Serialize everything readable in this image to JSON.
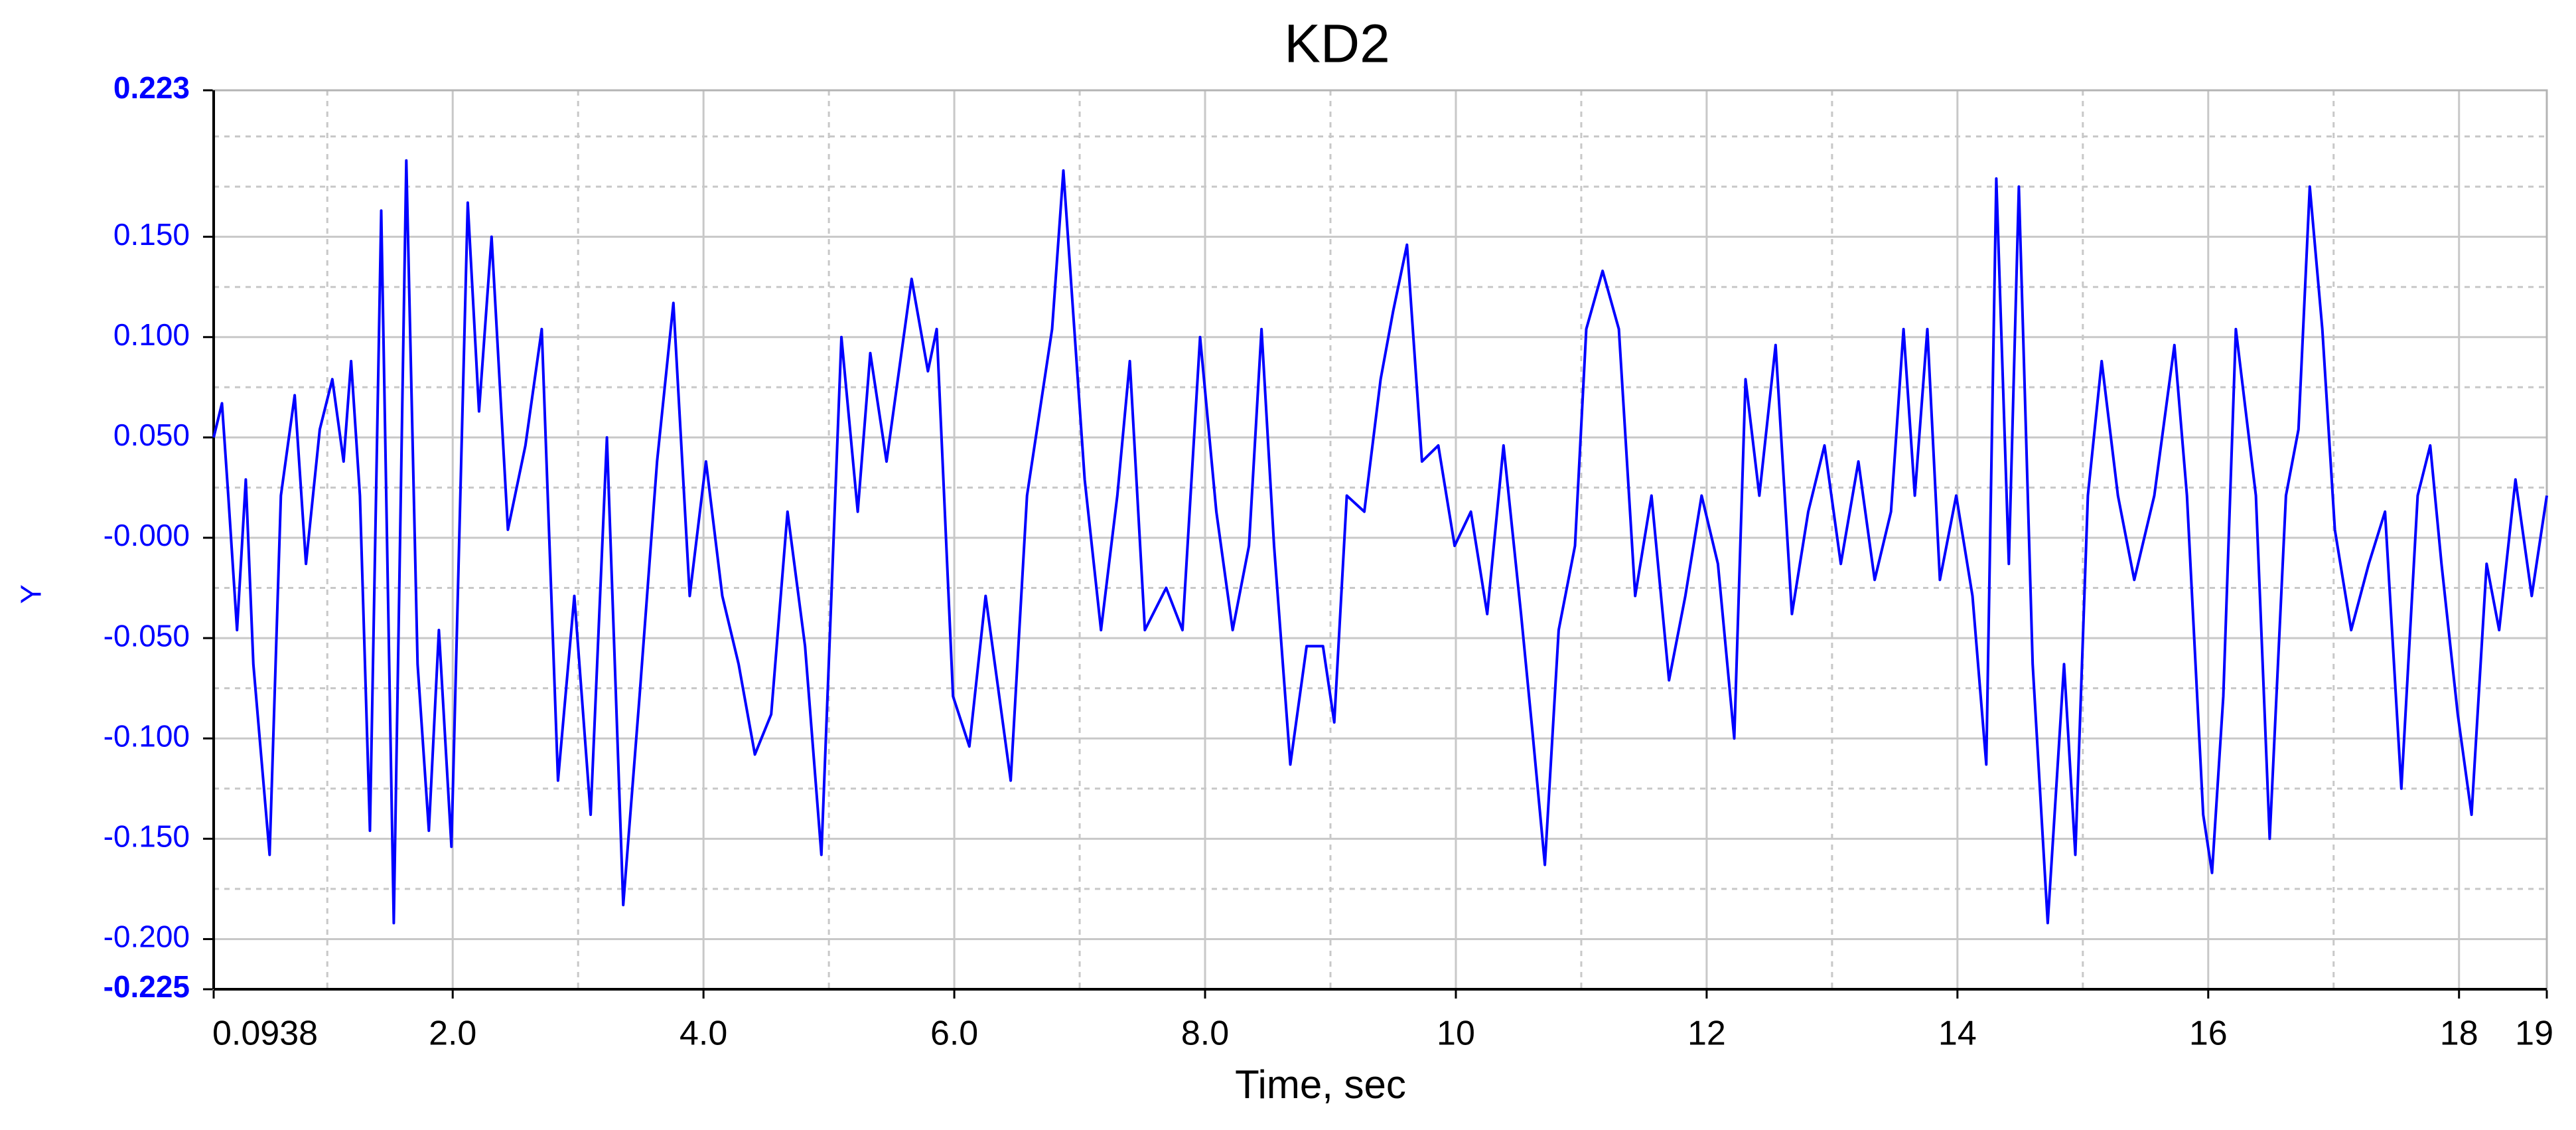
{
  "chart_data": {
    "type": "line",
    "title": "KD2",
    "x_label": "Time, sec",
    "y_label": "Y",
    "xlim": [
      0.0938,
      18.7
    ],
    "xticks": [
      0.0938,
      {
        "value": 2,
        "label": "2.0"
      },
      {
        "value": 4,
        "label": "4.0"
      },
      {
        "value": 6,
        "label": "6.0"
      },
      {
        "value": 8,
        "label": "8.0"
      },
      10,
      12,
      14,
      16,
      18,
      {
        "value": 18.7,
        "label": "19"
      }
    ],
    "minor_xticks": [
      1,
      3,
      5,
      7,
      9,
      11,
      13,
      15,
      17
    ],
    "ylim": [
      -0.225,
      0.223
    ],
    "yticks": [
      {
        "value": -0.225,
        "label": "-0.225"
      },
      {
        "value": -0.2,
        "label": "-0.200"
      },
      {
        "value": -0.15,
        "label": "-0.150"
      },
      {
        "value": -0.1,
        "label": "-0.100"
      },
      {
        "value": -0.05,
        "label": "-0.050"
      },
      {
        "value": 0,
        "label": "-0.000"
      },
      {
        "value": 0.05,
        "label": "0.050"
      },
      {
        "value": 0.1,
        "label": "0.100"
      },
      {
        "value": 0.15,
        "label": "0.150"
      },
      0.223
    ],
    "minor_yticks": [
      -0.175,
      -0.125,
      -0.075,
      -0.025,
      0.025,
      0.075,
      0.125,
      0.175,
      0.2
    ],
    "grid": true,
    "series": [
      {
        "name": "KD2",
        "color": "#0000ff",
        "x": [
          0.0938,
          0.16,
          0.21,
          0.28,
          0.35,
          0.41,
          0.54,
          0.63,
          0.74,
          0.83,
          0.94,
          1.04,
          1.13,
          1.19,
          1.26,
          1.34,
          1.43,
          1.53,
          1.63,
          1.72,
          1.81,
          1.89,
          1.99,
          2.12,
          2.21,
          2.31,
          2.44,
          2.58,
          2.71,
          2.84,
          2.97,
          3.1,
          3.23,
          3.36,
          3.49,
          3.63,
          3.76,
          3.89,
          4.02,
          4.15,
          4.28,
          4.41,
          4.54,
          4.67,
          4.81,
          4.94,
          5.1,
          5.23,
          5.33,
          5.46,
          5.66,
          5.79,
          5.86,
          5.99,
          6.12,
          6.25,
          6.45,
          6.58,
          6.78,
          6.87,
          7.04,
          7.17,
          7.3,
          7.4,
          7.52,
          7.69,
          7.82,
          7.96,
          8.09,
          8.22,
          8.35,
          8.45,
          8.55,
          8.68,
          8.81,
          8.94,
          9.03,
          9.13,
          9.27,
          9.4,
          9.5,
          9.61,
          9.73,
          9.86,
          9.99,
          10.12,
          10.25,
          10.38,
          10.52,
          10.61,
          10.71,
          10.82,
          10.95,
          11.04,
          11.17,
          11.3,
          11.43,
          11.56,
          11.7,
          11.83,
          11.96,
          12.09,
          12.22,
          12.31,
          12.42,
          12.55,
          12.68,
          12.81,
          12.94,
          13.07,
          13.21,
          13.34,
          13.47,
          13.57,
          13.66,
          13.76,
          13.86,
          13.99,
          14.12,
          14.23,
          14.31,
          14.41,
          14.49,
          14.6,
          14.72,
          14.85,
          14.94,
          15.04,
          15.15,
          15.28,
          15.41,
          15.57,
          15.73,
          15.83,
          15.96,
          16.03,
          16.12,
          16.22,
          16.38,
          16.49,
          16.62,
          16.72,
          16.81,
          16.91,
          17.01,
          17.14,
          17.28,
          17.41,
          17.54,
          17.67,
          17.77,
          17.86,
          17.99,
          18.1,
          18.22,
          18.32,
          18.45,
          18.58,
          18.7
        ],
        "values": [
          0.05,
          0.067,
          0.021,
          -0.046,
          0.029,
          -0.063,
          -0.158,
          0.021,
          0.071,
          -0.013,
          0.054,
          0.079,
          0.038,
          0.088,
          0.021,
          -0.146,
          0.163,
          -0.192,
          0.188,
          -0.063,
          -0.146,
          -0.046,
          -0.154,
          0.167,
          0.063,
          0.15,
          0.004,
          0.046,
          0.104,
          -0.121,
          -0.029,
          -0.138,
          0.05,
          -0.183,
          -0.079,
          0.038,
          0.117,
          -0.029,
          0.038,
          -0.029,
          -0.063,
          -0.108,
          -0.088,
          0.013,
          -0.054,
          -0.158,
          0.1,
          0.013,
          0.092,
          0.038,
          0.129,
          0.083,
          0.104,
          -0.079,
          -0.104,
          -0.029,
          -0.121,
          0.021,
          0.104,
          0.183,
          0.029,
          -0.046,
          0.021,
          0.088,
          -0.046,
          -0.025,
          -0.046,
          0.1,
          0.013,
          -0.046,
          -0.004,
          0.104,
          -0.004,
          -0.113,
          -0.054,
          -0.054,
          -0.092,
          0.021,
          0.013,
          0.079,
          0.113,
          0.146,
          0.038,
          0.046,
          -0.004,
          0.013,
          -0.038,
          0.046,
          -0.038,
          -0.096,
          -0.163,
          -0.046,
          -0.004,
          0.104,
          0.133,
          0.104,
          -0.029,
          0.021,
          -0.071,
          -0.029,
          0.021,
          -0.013,
          -0.1,
          0.079,
          0.021,
          0.096,
          -0.038,
          0.013,
          0.046,
          -0.013,
          0.038,
          -0.021,
          0.013,
          0.104,
          0.021,
          0.104,
          -0.021,
          0.021,
          -0.029,
          -0.113,
          0.179,
          -0.013,
          0.175,
          -0.063,
          -0.192,
          -0.063,
          -0.158,
          0.021,
          0.088,
          0.021,
          -0.021,
          0.021,
          0.096,
          0.021,
          -0.138,
          -0.167,
          -0.079,
          0.104,
          0.021,
          -0.15,
          0.021,
          0.054,
          0.175,
          0.104,
          0.004,
          -0.046,
          -0.013,
          0.013,
          -0.125,
          0.021,
          0.046,
          -0.013,
          -0.088,
          -0.138,
          -0.013,
          -0.046,
          0.029,
          -0.029,
          0.021
        ]
      }
    ]
  }
}
